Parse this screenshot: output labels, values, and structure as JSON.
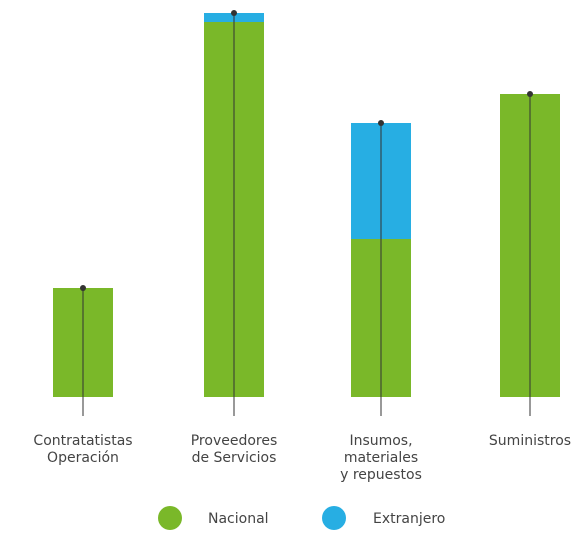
{
  "chart_data": {
    "type": "bar",
    "stacked": true,
    "categories": [
      [
        "Contratatistas",
        "Operación"
      ],
      [
        "Proveedores",
        "de Servicios"
      ],
      [
        "Insumos,",
        "materiales",
        "y repuestos"
      ],
      [
        "Suministros"
      ]
    ],
    "series": [
      {
        "name": "Nacional",
        "color": "#7ab829",
        "values": [
          109,
          375,
          158,
          303
        ]
      },
      {
        "name": "Extranjero",
        "color": "#27aee3",
        "values": [
          0,
          9,
          116,
          0
        ]
      }
    ],
    "ylim": [
      0,
      384
    ],
    "grid": false,
    "legend": {
      "position": "bottom"
    },
    "marker_color": "#333333",
    "label_color": "#444444"
  }
}
